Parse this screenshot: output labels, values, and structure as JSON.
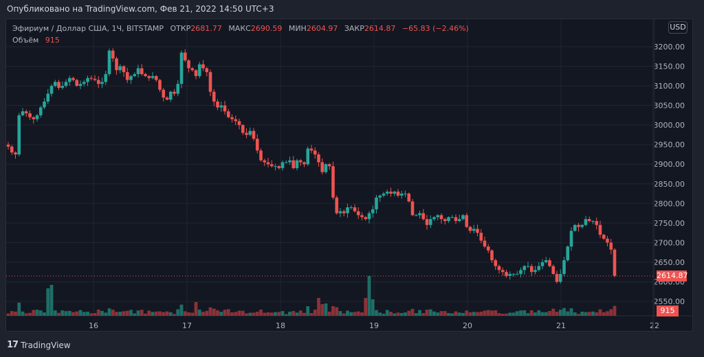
{
  "header": {
    "published": "Опубликовано на TradingView.com, Фев 21, 2022 14:50 UTC+3"
  },
  "legend": {
    "symbol": "Эфириум / Доллар США, 1Ч, BITSTAMP",
    "open_label": "ОТКР",
    "open_value": "2681.77",
    "high_label": "МАКС",
    "high_value": "2690.59",
    "low_label": "МИН",
    "low_value": "2604.97",
    "close_label": "ЗАКР",
    "close_value": "2614.87",
    "change": "−65.83 (−2.46%)",
    "volume_label": "Объём",
    "volume_value": "915"
  },
  "currency_badge": "USD",
  "last_price_tag": "2614.87",
  "volume_tag": "915",
  "footer": {
    "brand": "TradingView",
    "logo_glyph": "17"
  },
  "colors": {
    "up": "#26a69a",
    "down": "#ef5350",
    "up_volume": "#1f6e66",
    "down_volume": "#8c3238",
    "background": "#131722",
    "grid": "#222631"
  },
  "chart_data": {
    "type": "candlestick",
    "title": "Эфириум / Доллар США, 1Ч, BITSTAMP",
    "xlabel": "",
    "ylabel": "USD",
    "ylim": [
      2530,
      3230
    ],
    "y_ticks": [
      "3200.00",
      "3150.00",
      "3100.00",
      "3050.00",
      "3000.00",
      "2950.00",
      "2900.00",
      "2850.00",
      "2800.00",
      "2750.00",
      "2700.00",
      "2650.00",
      "2600.00",
      "2550.00"
    ],
    "x_ticks": [
      "16",
      "17",
      "18",
      "19",
      "20",
      "21",
      "22"
    ],
    "grid": true,
    "last_price": 2614.87,
    "interval": "1h",
    "candles_close": [
      2945,
      2930,
      2925,
      3025,
      3035,
      3030,
      3020,
      3015,
      3025,
      3045,
      3060,
      3080,
      3100,
      3110,
      3095,
      3100,
      3110,
      3120,
      3115,
      3100,
      3105,
      3110,
      3120,
      3118,
      3115,
      3105,
      3110,
      3130,
      3190,
      3170,
      3140,
      3150,
      3135,
      3115,
      3125,
      3130,
      3145,
      3130,
      3125,
      3120,
      3125,
      3115,
      3090,
      3070,
      3065,
      3085,
      3080,
      3105,
      3185,
      3165,
      3145,
      3140,
      3125,
      3155,
      3145,
      3135,
      3085,
      3060,
      3045,
      3050,
      3035,
      3020,
      3015,
      3010,
      3000,
      2980,
      2975,
      2985,
      2965,
      2935,
      2910,
      2905,
      2900,
      2895,
      2895,
      2890,
      2905,
      2905,
      2910,
      2890,
      2910,
      2905,
      2900,
      2940,
      2935,
      2925,
      2905,
      2880,
      2900,
      2895,
      2815,
      2775,
      2780,
      2775,
      2790,
      2790,
      2780,
      2770,
      2765,
      2760,
      2775,
      2785,
      2815,
      2820,
      2825,
      2830,
      2825,
      2830,
      2820,
      2825,
      2825,
      2805,
      2770,
      2770,
      2775,
      2760,
      2745,
      2760,
      2765,
      2770,
      2760,
      2755,
      2765,
      2765,
      2755,
      2760,
      2770,
      2740,
      2730,
      2735,
      2725,
      2705,
      2690,
      2680,
      2655,
      2640,
      2630,
      2625,
      2615,
      2620,
      2620,
      2620,
      2630,
      2640,
      2640,
      2625,
      2630,
      2640,
      2650,
      2655,
      2640,
      2620,
      2600,
      2620,
      2655,
      2690,
      2730,
      2745,
      2740,
      2745,
      2760,
      2755,
      2755,
      2745,
      2720,
      2710,
      2700,
      2682,
      2615
    ],
    "volume_ticks_note": "volume bars per candle shown beneath price pane",
    "last_volume": 915
  }
}
